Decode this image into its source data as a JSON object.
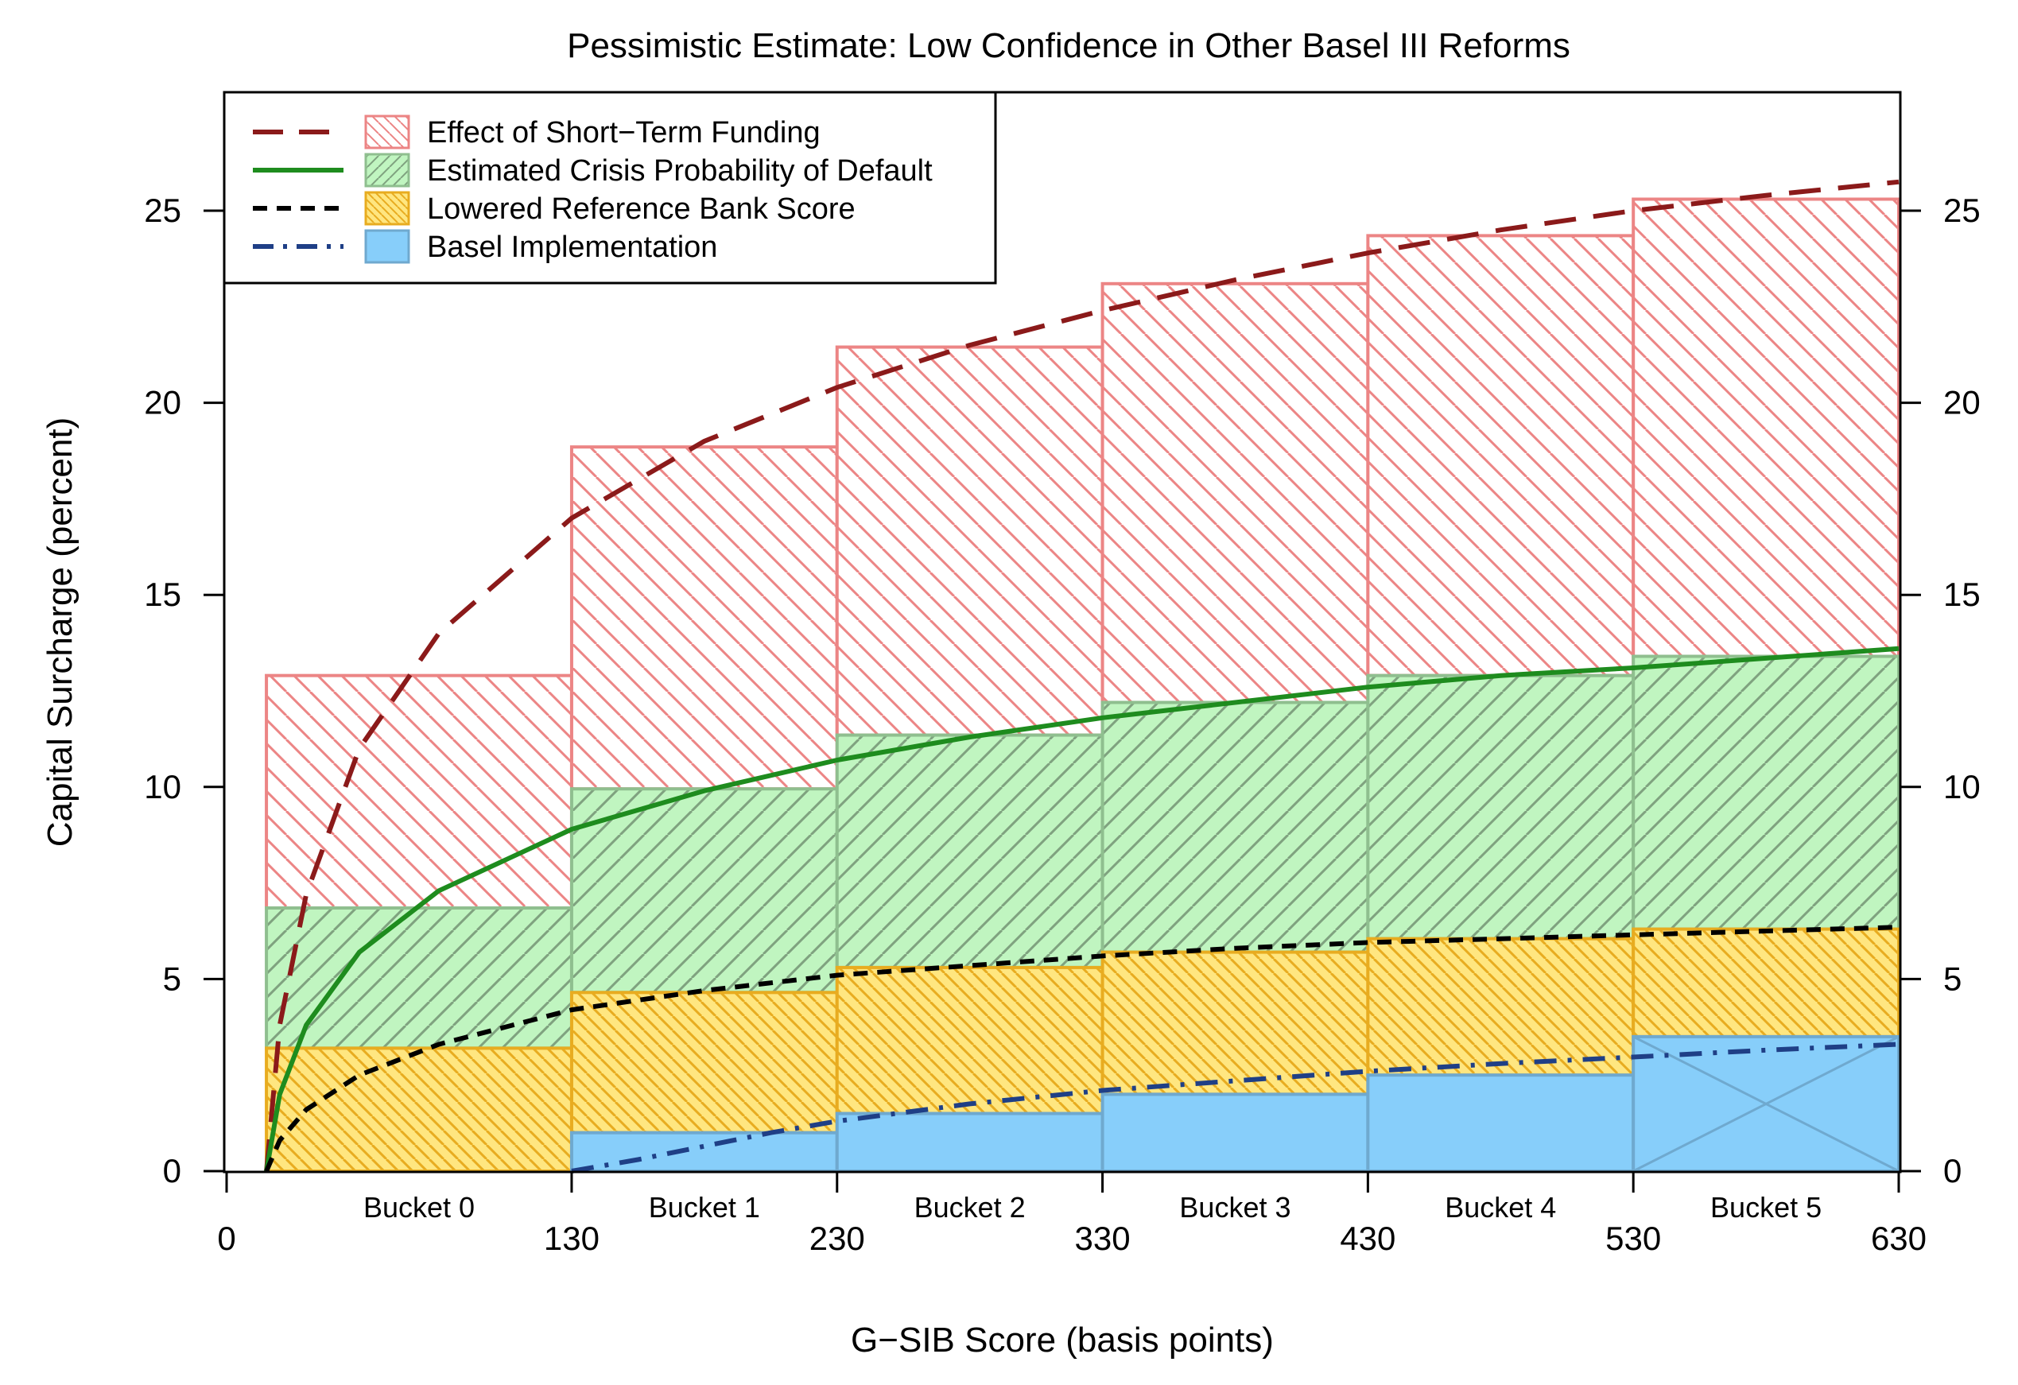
{
  "chart_data": {
    "type": "bar",
    "title": "Pessimistic Estimate: Low Confidence in Other Basel III Reforms",
    "xlabel": "G−SIB Score (basis points)",
    "ylabel": "Capital Surcharge (percent)",
    "xlim": [
      0,
      630
    ],
    "ylim": [
      0,
      28
    ],
    "x_ticks": [
      0,
      130,
      230,
      330,
      430,
      530,
      630
    ],
    "y_ticks": [
      0,
      5,
      10,
      15,
      20,
      25
    ],
    "grid": false,
    "legend_position": "top-left",
    "buckets": [
      {
        "label": "Bucket 0",
        "x_start": 15,
        "x_end": 130
      },
      {
        "label": "Bucket 1",
        "x_start": 130,
        "x_end": 230
      },
      {
        "label": "Bucket 2",
        "x_start": 230,
        "x_end": 330
      },
      {
        "label": "Bucket 3",
        "x_start": 330,
        "x_end": 430
      },
      {
        "label": "Bucket 4",
        "x_start": 430,
        "x_end": 530
      },
      {
        "label": "Bucket 5",
        "x_start": 530,
        "x_end": 630
      }
    ],
    "series": [
      {
        "name": "Basel Implementation",
        "values": [
          0,
          1.0,
          1.5,
          2.0,
          2.5,
          3.5
        ],
        "fill": "#87cefa",
        "edge": "#6fa9cf",
        "line_color": "#1f3f86",
        "line_style": "dashdot"
      },
      {
        "name": "Lowered Reference Bank Score",
        "values": [
          3.2,
          4.65,
          5.3,
          5.7,
          6.05,
          6.3
        ],
        "fill": "#ffe680",
        "edge": "#e8ac20",
        "line_color": "#000000",
        "line_style": "dashed"
      },
      {
        "name": "Estimated Crisis Probability of Default",
        "values": [
          6.85,
          9.95,
          11.35,
          12.2,
          12.9,
          13.4
        ],
        "fill": "#c0f5c0",
        "edge": "#8fbf8f",
        "line_color": "#1e8c1e",
        "line_style": "solid"
      },
      {
        "name": "Effect of Short−Term Funding",
        "values": [
          12.9,
          18.85,
          21.45,
          23.1,
          24.35,
          25.3
        ],
        "fill": "#ffffff",
        "edge": "#ec8585",
        "line_color": "#8b1a1a",
        "line_style": "longdash"
      }
    ],
    "curves": [
      {
        "name": "Effect of Short−Term Funding",
        "x": [
          15,
          20,
          30,
          50,
          80,
          130,
          180,
          230,
          280,
          330,
          380,
          430,
          480,
          530,
          580,
          630
        ],
        "y": [
          0,
          3.8,
          7.2,
          11.0,
          14.0,
          17.0,
          19.0,
          20.4,
          21.5,
          22.4,
          23.2,
          23.9,
          24.5,
          25.0,
          25.4,
          25.75
        ]
      },
      {
        "name": "Estimated Crisis Probability of Default",
        "x": [
          15,
          20,
          30,
          50,
          80,
          130,
          180,
          230,
          280,
          330,
          380,
          430,
          480,
          530,
          580,
          630
        ],
        "y": [
          0,
          2.0,
          3.8,
          5.7,
          7.3,
          8.9,
          9.9,
          10.7,
          11.3,
          11.8,
          12.2,
          12.6,
          12.9,
          13.1,
          13.35,
          13.6
        ]
      },
      {
        "name": "Lowered Reference Bank Score",
        "x": [
          15,
          20,
          30,
          50,
          80,
          130,
          180,
          230,
          280,
          330,
          380,
          430,
          480,
          530,
          580,
          630
        ],
        "y": [
          0,
          0.8,
          1.6,
          2.5,
          3.3,
          4.2,
          4.7,
          5.1,
          5.35,
          5.6,
          5.8,
          5.95,
          6.05,
          6.15,
          6.25,
          6.35
        ]
      },
      {
        "name": "Basel Implementation",
        "x": [
          130,
          155,
          180,
          205,
          230,
          280,
          330,
          380,
          430,
          480,
          530,
          580,
          630
        ],
        "y": [
          0,
          0.3,
          0.65,
          1.0,
          1.3,
          1.75,
          2.1,
          2.35,
          2.6,
          2.8,
          2.97,
          3.15,
          3.3
        ]
      }
    ]
  }
}
